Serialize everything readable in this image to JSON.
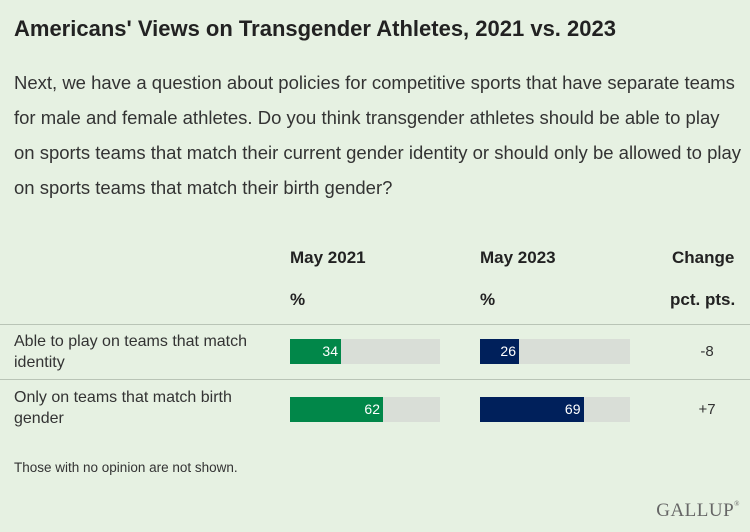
{
  "title": "Americans' Views on Transgender Athletes, 2021 vs. 2023",
  "question": "Next, we have a question about policies for competitive sports that have separate teams for male and female athletes. Do you think transgender athletes should be able to play on sports teams that match their current gender identity or should only be allowed to play on sports teams that match their birth gender?",
  "columns": {
    "may2021": "May 2021",
    "may2023": "May 2023",
    "change": "Change",
    "unit_pct": "%",
    "unit_change": "pct. pts."
  },
  "chart_data": {
    "type": "bar",
    "categories": [
      "Able to play on teams that match identity",
      "Only on teams that match birth gender"
    ],
    "series": [
      {
        "name": "May 2021",
        "values": [
          34,
          62
        ],
        "color": "#018749"
      },
      {
        "name": "May 2023",
        "values": [
          26,
          69
        ],
        "color": "#00205b"
      }
    ],
    "change": [
      "-8",
      "+7"
    ],
    "xlim": [
      0,
      100
    ],
    "ylabel": "%"
  },
  "rows": [
    {
      "label": "Able to play on teams that match identity",
      "v2021": "34",
      "v2023": "26",
      "change": "-8"
    },
    {
      "label": "Only on teams that match birth gender",
      "v2021": "62",
      "v2023": "69",
      "change": "+7"
    }
  ],
  "note": "Those with no opinion are not shown.",
  "logo": "GALLUP",
  "colors": {
    "background": "#e6f1e2",
    "green": "#018749",
    "navy": "#00205b",
    "track": "#d9ded7"
  }
}
